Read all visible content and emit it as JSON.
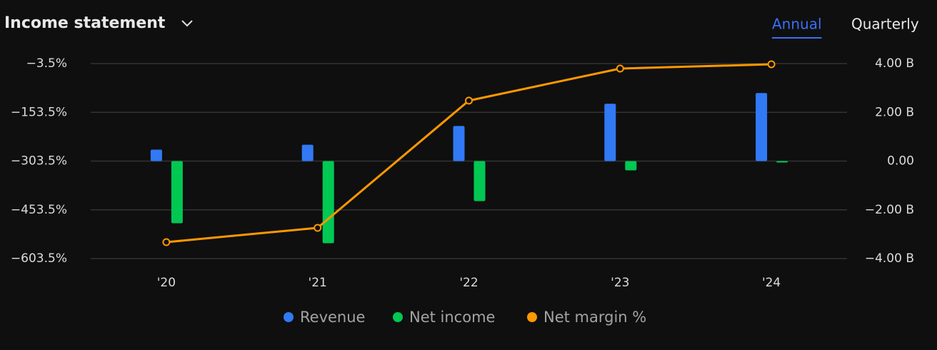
{
  "chart_data": {
    "type": "bar",
    "title": "Income statement",
    "categories": [
      "'20",
      "'21",
      "'22",
      "'23",
      "'24"
    ],
    "series": [
      {
        "name": "Revenue",
        "color": "#3179f5",
        "axis": "y2",
        "values": [
          0.47,
          0.67,
          1.44,
          2.35,
          2.79
        ]
      },
      {
        "name": "Net income",
        "color": "#00c853",
        "axis": "y2",
        "values": [
          -2.55,
          -3.37,
          -1.64,
          -0.38,
          -0.06
        ]
      },
      {
        "name": "Net margin %",
        "color": "#ff9800",
        "type": "line",
        "values": [
          -553,
          -509,
          -117.5,
          -18.9,
          -5.7
        ]
      }
    ],
    "ylim": [
      -603.5,
      -3.5
    ],
    "yticks": [
      {
        "value": -3.5,
        "label": "−3.5%"
      },
      {
        "value": -153.5,
        "label": "−153.5%"
      },
      {
        "value": -303.5,
        "label": "−303.5%"
      },
      {
        "value": -453.5,
        "label": "−453.5%"
      },
      {
        "value": -603.5,
        "label": "−603.5%"
      }
    ],
    "y2lim": [
      -4,
      4
    ],
    "y2ticks": [
      {
        "value": 4,
        "label": "4.00 B"
      },
      {
        "value": 2,
        "label": "2.00 B"
      },
      {
        "value": 0,
        "label": "0.00"
      },
      {
        "value": -2,
        "label": "−2.00 B"
      },
      {
        "value": -4,
        "label": "−4.00 B"
      }
    ],
    "grid": true,
    "legend": "bottom"
  },
  "tabs": [
    "Annual",
    "Quarterly"
  ],
  "selected_tab": 0
}
